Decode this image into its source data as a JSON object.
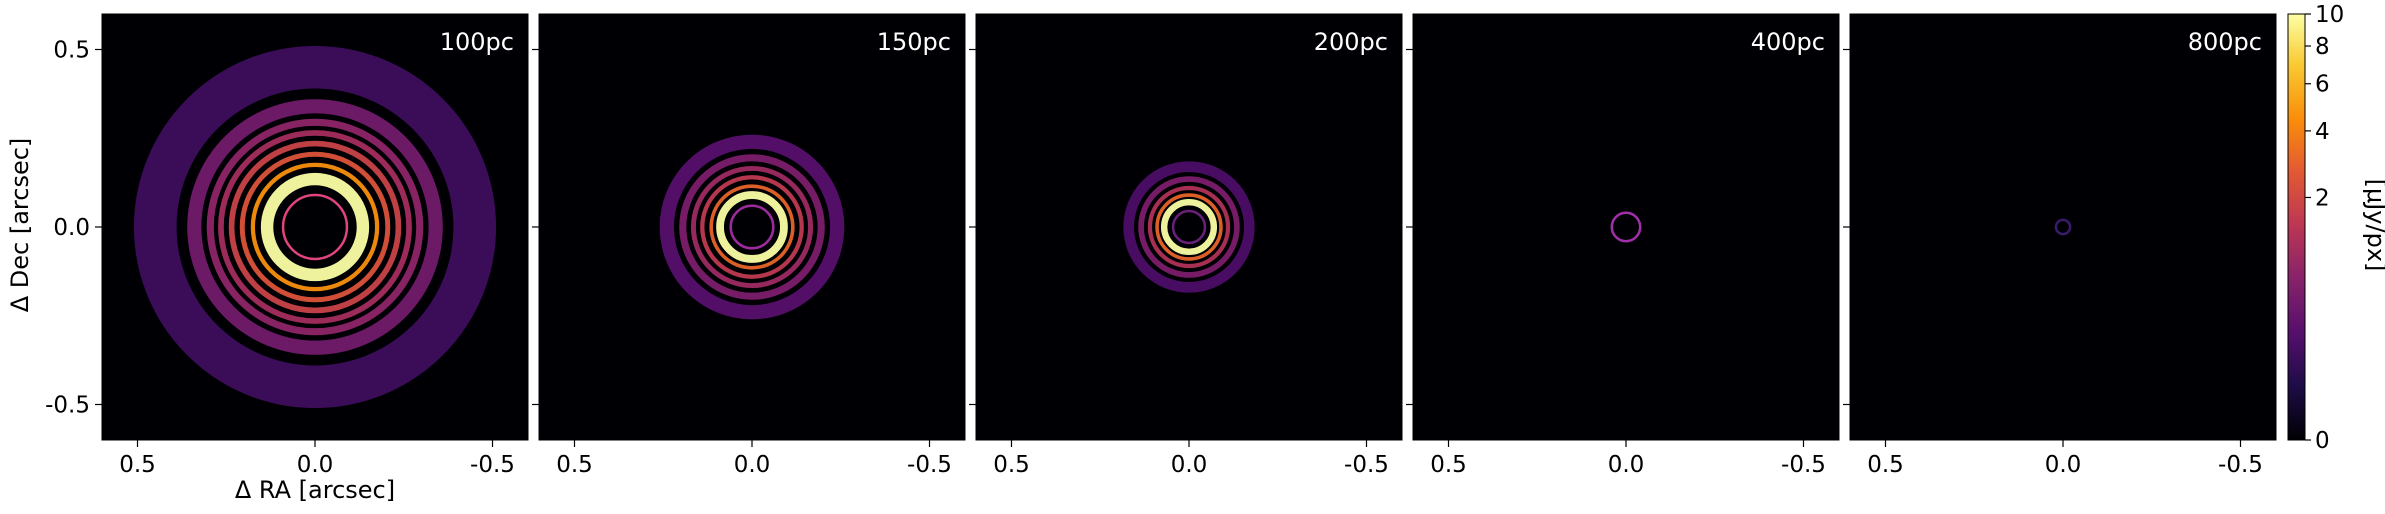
{
  "chart_data": {
    "type": "heatmap",
    "xlabel": "Δ RA [arcsec]",
    "ylabel": "Δ Dec [arcsec]",
    "xlim": [
      0.6,
      -0.6
    ],
    "ylim": [
      -0.6,
      0.6
    ],
    "x_ticks": [
      0.5,
      0.0,
      -0.5
    ],
    "x_tick_labels": [
      "0.5",
      "0.0",
      "-0.5"
    ],
    "y_ticks": [
      0.5,
      0.0,
      -0.5
    ],
    "y_tick_labels": [
      "0.5",
      "0.0",
      "-0.5"
    ],
    "panels": [
      {
        "label": "100pc",
        "center_circle_radius": 0.09,
        "center_circle_color": "#e0457b",
        "rings": [
          {
            "radius": 0.135,
            "width": 0.035,
            "intensity": 10.0
          },
          {
            "radius": 0.175,
            "width": 0.012,
            "intensity": 4.5
          },
          {
            "radius": 0.205,
            "width": 0.014,
            "intensity": 2.4
          },
          {
            "radius": 0.235,
            "width": 0.016,
            "intensity": 1.8
          },
          {
            "radius": 0.265,
            "width": 0.016,
            "intensity": 1.0
          },
          {
            "radius": 0.295,
            "width": 0.02,
            "intensity": 0.7
          },
          {
            "radius": 0.34,
            "width": 0.04,
            "intensity": 0.4
          },
          {
            "radius": 0.45,
            "width": 0.12,
            "intensity": 0.1
          }
        ]
      },
      {
        "label": "150pc",
        "center_circle_radius": 0.06,
        "center_circle_color": "#9b2b9b",
        "rings": [
          {
            "radius": 0.09,
            "width": 0.022,
            "intensity": 10.0
          },
          {
            "radius": 0.115,
            "width": 0.01,
            "intensity": 3.0
          },
          {
            "radius": 0.14,
            "width": 0.012,
            "intensity": 1.5
          },
          {
            "radius": 0.165,
            "width": 0.014,
            "intensity": 0.9
          },
          {
            "radius": 0.195,
            "width": 0.02,
            "intensity": 0.5
          },
          {
            "radius": 0.24,
            "width": 0.04,
            "intensity": 0.2
          }
        ]
      },
      {
        "label": "200pc",
        "center_circle_radius": 0.045,
        "center_circle_color": "#6a1f7a",
        "rings": [
          {
            "radius": 0.07,
            "width": 0.018,
            "intensity": 10.0
          },
          {
            "radius": 0.09,
            "width": 0.01,
            "intensity": 3.0
          },
          {
            "radius": 0.11,
            "width": 0.012,
            "intensity": 1.2
          },
          {
            "radius": 0.135,
            "width": 0.016,
            "intensity": 0.5
          },
          {
            "radius": 0.17,
            "width": 0.03,
            "intensity": 0.15
          }
        ]
      },
      {
        "label": "400pc",
        "center_circle_radius": 0.04,
        "center_circle_color": "#a02fa8",
        "rings": []
      },
      {
        "label": "800pc",
        "center_circle_radius": 0.02,
        "center_circle_color": "#3a1a6a",
        "rings": []
      }
    ],
    "colorbar": {
      "label": "[μJy/px]",
      "range": [
        0,
        10
      ],
      "scale": "power-law",
      "ticks": [
        0,
        2,
        4,
        6,
        8,
        10
      ],
      "tick_labels": [
        "0",
        "2",
        "4",
        "6",
        "8",
        "10"
      ],
      "colormap": "inferno"
    }
  }
}
